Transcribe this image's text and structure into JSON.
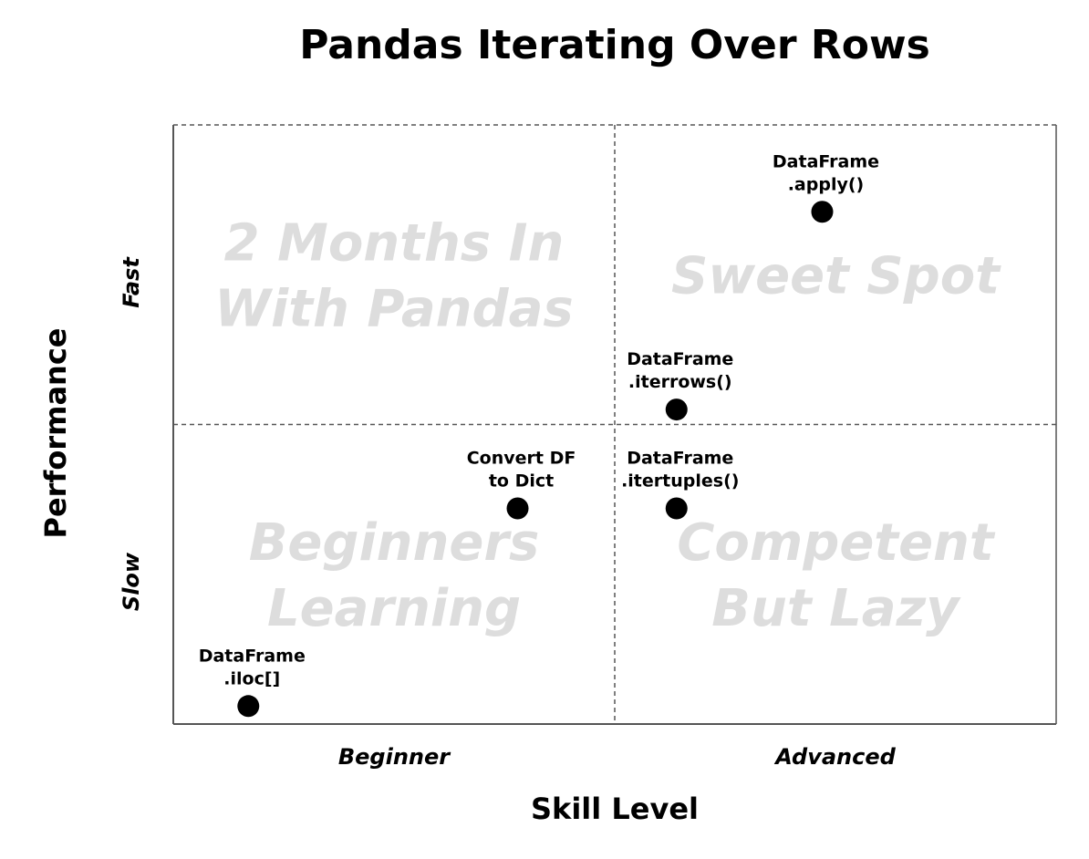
{
  "chart_data": {
    "type": "scatter",
    "title": "Pandas Iterating Over Rows",
    "xlabel": "Skill Level",
    "ylabel": "Performance",
    "x_ticks": [
      "Beginner",
      "Advanced"
    ],
    "y_ticks": [
      "Slow",
      "Fast"
    ],
    "xlim": [
      0,
      10
    ],
    "ylim": [
      0,
      10
    ],
    "quadrants": {
      "top_left": [
        "2 Months In",
        "With Pandas"
      ],
      "top_right": [
        "Sweet Spot"
      ],
      "bottom_left": [
        "Beginners",
        "Learning"
      ],
      "bottom_right": [
        "Competent",
        "But Lazy"
      ]
    },
    "points": [
      {
        "label": [
          "DataFrame",
          ".apply()"
        ],
        "x": 7.35,
        "y": 8.55
      },
      {
        "label": [
          "DataFrame",
          ".iterrows()"
        ],
        "x": 5.7,
        "y": 5.25
      },
      {
        "label": [
          "DataFrame",
          ".itertuples()"
        ],
        "x": 5.7,
        "y": 3.6
      },
      {
        "label": [
          "Convert DF",
          "to Dict"
        ],
        "x": 3.9,
        "y": 3.6
      },
      {
        "label": [
          "DataFrame",
          ".iloc[]"
        ],
        "x": 0.85,
        "y": 0.3
      }
    ],
    "quadrant_lines": "dashed",
    "grid": false,
    "legend": "none"
  },
  "colors": {
    "points": "#000000",
    "quadrant_text": "#dddddd",
    "axes": "#555555"
  }
}
